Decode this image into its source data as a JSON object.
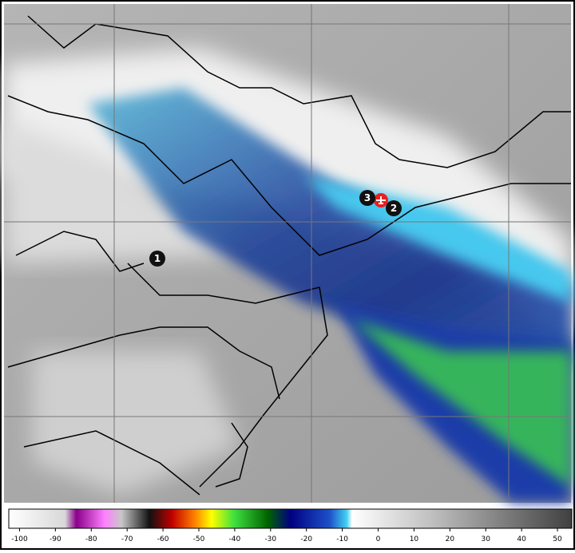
{
  "markers": [
    {
      "label": "1"
    },
    {
      "label": "2"
    },
    {
      "label": "3"
    }
  ],
  "colorbar": {
    "ticks": [
      -100,
      -90,
      -80,
      -70,
      -60,
      -50,
      -40,
      -30,
      -20,
      -10,
      0,
      10,
      20,
      30,
      40,
      50
    ],
    "range": [
      -103,
      54
    ]
  }
}
